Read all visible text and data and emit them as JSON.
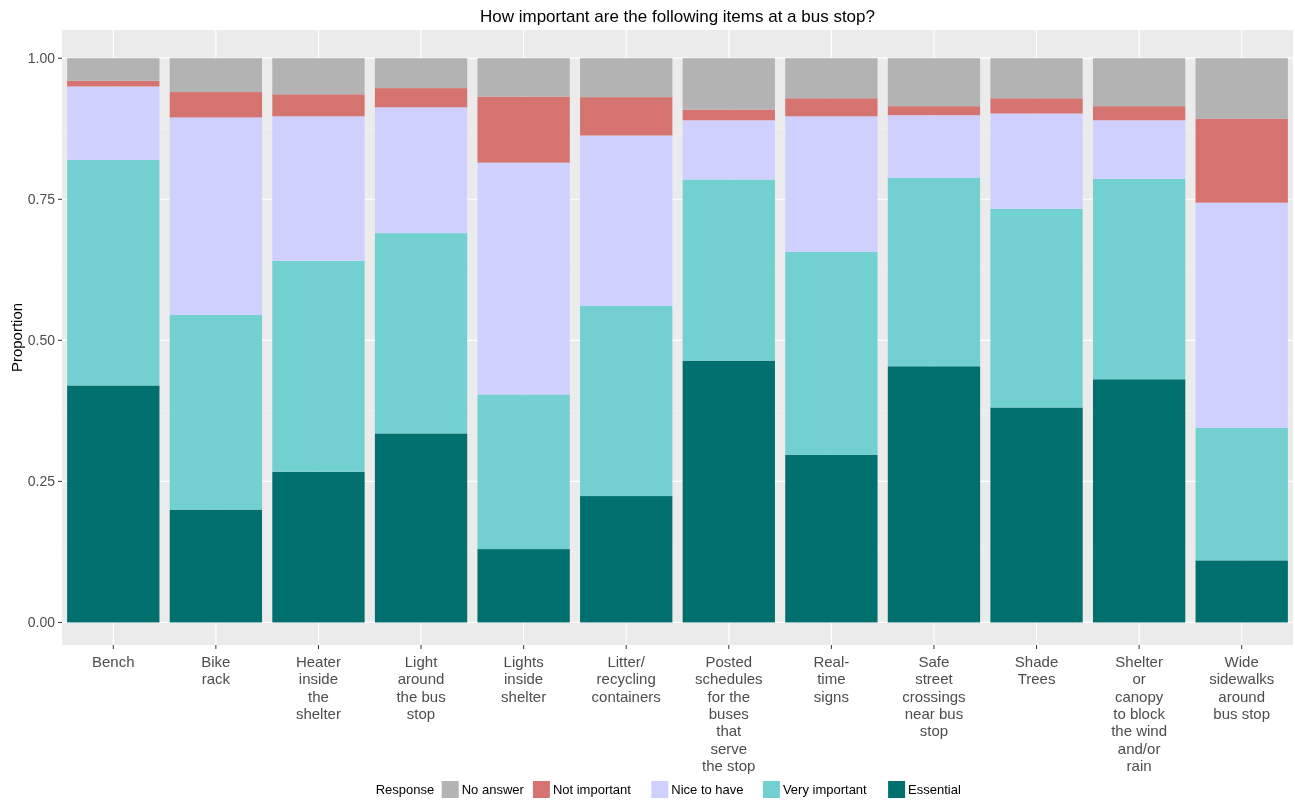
{
  "chart_data": {
    "type": "bar",
    "stacked": true,
    "title": "How important are the following items at a bus stop?",
    "ylabel": "Proportion",
    "legend_title": "Response",
    "legend": "bottom",
    "grid": true,
    "categories": [
      "Bench",
      "Bike\nrack",
      "Heater\ninside\nthe\nshelter",
      "Light\naround\nthe bus\nstop",
      "Lights\ninside\nshelter",
      "Litter/\nrecycling\ncontainers",
      "Posted\nschedules\nfor the\nbuses\nthat\nserve\nthe stop",
      "Real-\ntime\nsigns",
      "Safe\nstreet\ncrossings\nnear bus\nstop",
      "Shade\nTrees",
      "Shelter\nor\ncanopy\nto block\nthe wind\nand/or\nrain",
      "Wide\nsidewalks\naround\nbus stop"
    ],
    "ylim": [
      -0.04,
      1.05
    ],
    "yticks": [
      {
        "value": 0,
        "label": "0.00"
      },
      {
        "value": 0.25,
        "label": "0.25"
      },
      {
        "value": 0.5,
        "label": "0.50"
      },
      {
        "value": 0.75,
        "label": "0.75"
      },
      {
        "value": 1,
        "label": "1.00"
      }
    ],
    "series": [
      {
        "name": "Essential",
        "color": "#00706e",
        "values": [
          0.42,
          0.2,
          0.267,
          0.335,
          0.13,
          0.224,
          0.464,
          0.297,
          0.454,
          0.381,
          0.431,
          0.11
        ]
      },
      {
        "name": "Very important",
        "color": "#72d0d1",
        "values": [
          0.4,
          0.345,
          0.374,
          0.355,
          0.274,
          0.337,
          0.321,
          0.36,
          0.334,
          0.352,
          0.355,
          0.235
        ]
      },
      {
        "name": "Nice to have",
        "color": "#d0d0ff",
        "values": [
          0.13,
          0.35,
          0.256,
          0.223,
          0.411,
          0.302,
          0.105,
          0.24,
          0.111,
          0.169,
          0.104,
          0.399
        ]
      },
      {
        "name": "Not important",
        "color": "#d4736f",
        "values": [
          0.01,
          0.045,
          0.039,
          0.034,
          0.117,
          0.068,
          0.019,
          0.032,
          0.016,
          0.027,
          0.025,
          0.149
        ]
      },
      {
        "name": "No answer",
        "color": "#b3b3b3",
        "values": [
          0.04,
          0.06,
          0.064,
          0.053,
          0.068,
          0.069,
          0.091,
          0.071,
          0.085,
          0.071,
          0.085,
          0.107
        ]
      }
    ]
  }
}
